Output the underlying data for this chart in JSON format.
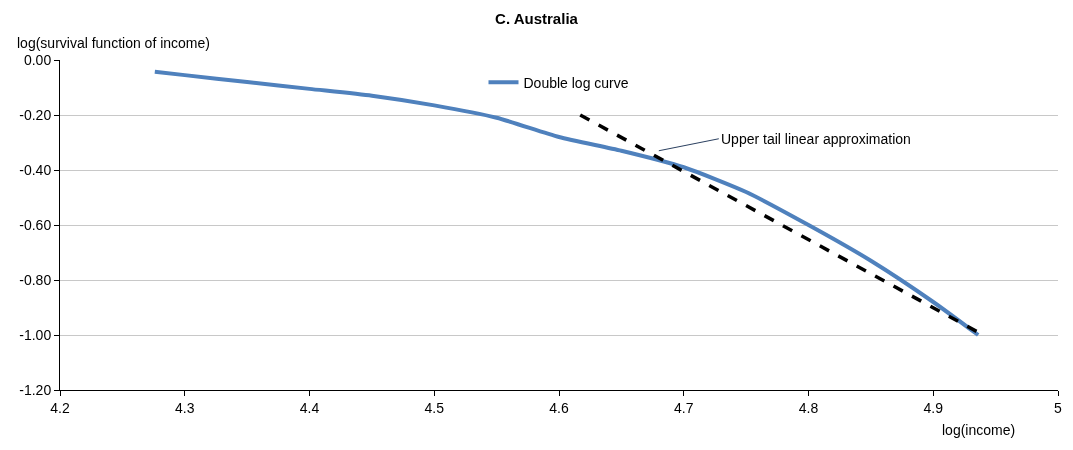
{
  "chart_data": {
    "type": "line",
    "title": "C. Australia",
    "xlabel": "log(income)",
    "ylabel": "log(survival function of income)",
    "series": [
      {
        "name": "Double log curve",
        "color": "#4f81bd",
        "line_style": "solid",
        "x": [
          4.276,
          4.3,
          4.35,
          4.4,
          4.45,
          4.5,
          4.55,
          4.6,
          4.65,
          4.7,
          4.75,
          4.8,
          4.85,
          4.9,
          4.936
        ],
        "values": [
          -0.043,
          -0.055,
          -0.08,
          -0.105,
          -0.13,
          -0.165,
          -0.21,
          -0.28,
          -0.33,
          -0.39,
          -0.48,
          -0.6,
          -0.73,
          -0.88,
          -1.0
        ]
      },
      {
        "color": "#000000",
        "line_style": "dashed",
        "x": [
          4.617,
          4.936
        ],
        "values": [
          -0.2,
          -0.99
        ]
      }
    ],
    "annotations": [
      {
        "text": "Upper tail linear approximation",
        "x": 4.68,
        "y": -0.33
      }
    ],
    "xlim": [
      4.2,
      5
    ],
    "xticks": [
      4.2,
      4.3,
      4.4,
      4.5,
      4.6,
      4.7,
      4.8,
      4.9,
      5
    ],
    "ylim": [
      -1.2,
      0
    ],
    "yticks": [
      {
        "value": 0,
        "label": "0.00"
      },
      {
        "value": -0.2,
        "label": "-0.20"
      },
      {
        "value": -0.4,
        "label": "-0.40"
      },
      {
        "value": -0.6,
        "label": "-0.60"
      },
      {
        "value": -0.8,
        "label": "-0.80"
      },
      {
        "value": -1.0,
        "label": "-1.00"
      },
      {
        "value": -1.2,
        "label": "-1.20"
      }
    ],
    "grid": "y",
    "legend": "top",
    "marker": "none"
  }
}
